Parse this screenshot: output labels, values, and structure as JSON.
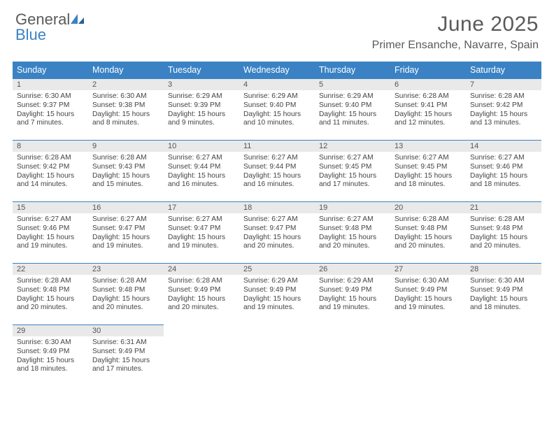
{
  "brand": {
    "word1": "General",
    "word2": "Blue"
  },
  "title": "June 2025",
  "location": "Primer Ensanche, Navarre, Spain",
  "colors": {
    "header_bg": "#3a82c4",
    "header_text": "#ffffff",
    "daynum_bg": "#e9e9e9",
    "body_text": "#444444",
    "rule": "#3a82c4",
    "page_bg": "#ffffff"
  },
  "fonts": {
    "title_size": 30,
    "location_size": 16,
    "dayhead_size": 12.5,
    "body_size": 10.2
  },
  "day_names": [
    "Sunday",
    "Monday",
    "Tuesday",
    "Wednesday",
    "Thursday",
    "Friday",
    "Saturday"
  ],
  "weeks": [
    [
      {
        "n": "1",
        "sr": "6:30 AM",
        "ss": "9:37 PM",
        "dl": "15 hours and 7 minutes."
      },
      {
        "n": "2",
        "sr": "6:30 AM",
        "ss": "9:38 PM",
        "dl": "15 hours and 8 minutes."
      },
      {
        "n": "3",
        "sr": "6:29 AM",
        "ss": "9:39 PM",
        "dl": "15 hours and 9 minutes."
      },
      {
        "n": "4",
        "sr": "6:29 AM",
        "ss": "9:40 PM",
        "dl": "15 hours and 10 minutes."
      },
      {
        "n": "5",
        "sr": "6:29 AM",
        "ss": "9:40 PM",
        "dl": "15 hours and 11 minutes."
      },
      {
        "n": "6",
        "sr": "6:28 AM",
        "ss": "9:41 PM",
        "dl": "15 hours and 12 minutes."
      },
      {
        "n": "7",
        "sr": "6:28 AM",
        "ss": "9:42 PM",
        "dl": "15 hours and 13 minutes."
      }
    ],
    [
      {
        "n": "8",
        "sr": "6:28 AM",
        "ss": "9:42 PM",
        "dl": "15 hours and 14 minutes."
      },
      {
        "n": "9",
        "sr": "6:28 AM",
        "ss": "9:43 PM",
        "dl": "15 hours and 15 minutes."
      },
      {
        "n": "10",
        "sr": "6:27 AM",
        "ss": "9:44 PM",
        "dl": "15 hours and 16 minutes."
      },
      {
        "n": "11",
        "sr": "6:27 AM",
        "ss": "9:44 PM",
        "dl": "15 hours and 16 minutes."
      },
      {
        "n": "12",
        "sr": "6:27 AM",
        "ss": "9:45 PM",
        "dl": "15 hours and 17 minutes."
      },
      {
        "n": "13",
        "sr": "6:27 AM",
        "ss": "9:45 PM",
        "dl": "15 hours and 18 minutes."
      },
      {
        "n": "14",
        "sr": "6:27 AM",
        "ss": "9:46 PM",
        "dl": "15 hours and 18 minutes."
      }
    ],
    [
      {
        "n": "15",
        "sr": "6:27 AM",
        "ss": "9:46 PM",
        "dl": "15 hours and 19 minutes."
      },
      {
        "n": "16",
        "sr": "6:27 AM",
        "ss": "9:47 PM",
        "dl": "15 hours and 19 minutes."
      },
      {
        "n": "17",
        "sr": "6:27 AM",
        "ss": "9:47 PM",
        "dl": "15 hours and 19 minutes."
      },
      {
        "n": "18",
        "sr": "6:27 AM",
        "ss": "9:47 PM",
        "dl": "15 hours and 20 minutes."
      },
      {
        "n": "19",
        "sr": "6:27 AM",
        "ss": "9:48 PM",
        "dl": "15 hours and 20 minutes."
      },
      {
        "n": "20",
        "sr": "6:28 AM",
        "ss": "9:48 PM",
        "dl": "15 hours and 20 minutes."
      },
      {
        "n": "21",
        "sr": "6:28 AM",
        "ss": "9:48 PM",
        "dl": "15 hours and 20 minutes."
      }
    ],
    [
      {
        "n": "22",
        "sr": "6:28 AM",
        "ss": "9:48 PM",
        "dl": "15 hours and 20 minutes."
      },
      {
        "n": "23",
        "sr": "6:28 AM",
        "ss": "9:48 PM",
        "dl": "15 hours and 20 minutes."
      },
      {
        "n": "24",
        "sr": "6:28 AM",
        "ss": "9:49 PM",
        "dl": "15 hours and 20 minutes."
      },
      {
        "n": "25",
        "sr": "6:29 AM",
        "ss": "9:49 PM",
        "dl": "15 hours and 19 minutes."
      },
      {
        "n": "26",
        "sr": "6:29 AM",
        "ss": "9:49 PM",
        "dl": "15 hours and 19 minutes."
      },
      {
        "n": "27",
        "sr": "6:30 AM",
        "ss": "9:49 PM",
        "dl": "15 hours and 19 minutes."
      },
      {
        "n": "28",
        "sr": "6:30 AM",
        "ss": "9:49 PM",
        "dl": "15 hours and 18 minutes."
      }
    ],
    [
      {
        "n": "29",
        "sr": "6:30 AM",
        "ss": "9:49 PM",
        "dl": "15 hours and 18 minutes."
      },
      {
        "n": "30",
        "sr": "6:31 AM",
        "ss": "9:49 PM",
        "dl": "15 hours and 17 minutes."
      },
      null,
      null,
      null,
      null,
      null
    ]
  ],
  "labels": {
    "sunrise": "Sunrise: ",
    "sunset": "Sunset: ",
    "daylight": "Daylight: "
  }
}
